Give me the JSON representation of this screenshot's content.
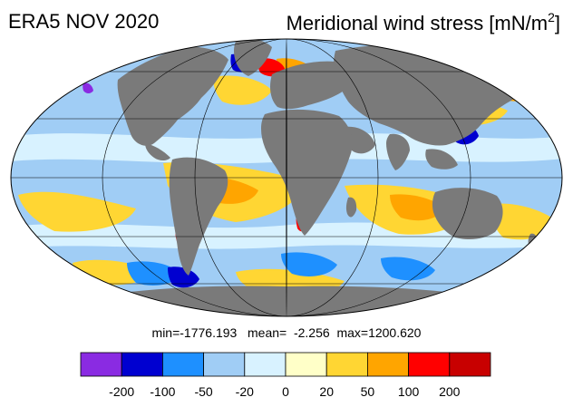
{
  "title": {
    "left": "ERA5 NOV 2020",
    "right": "Meridional wind stress [mN/m",
    "right_sup": "2",
    "right_close": "]"
  },
  "stats": {
    "text": "min=-1776.193   mean=  -2.256  max=1200.620"
  },
  "colorbar": {
    "colors": [
      "#8a2be2",
      "#0000d0",
      "#1e90ff",
      "#a0cdf5",
      "#d8f2ff",
      "#ffffc8",
      "#ffd633",
      "#ffa500",
      "#ff0000",
      "#c80000"
    ],
    "labels": [
      "-200",
      "-100",
      "-50",
      "-20",
      "0",
      "20",
      "50",
      "100",
      "200"
    ]
  },
  "map_colors": {
    "ocean_base": "#a0cdf5",
    "land": "#7a7a7a",
    "graticule": "#000000"
  }
}
